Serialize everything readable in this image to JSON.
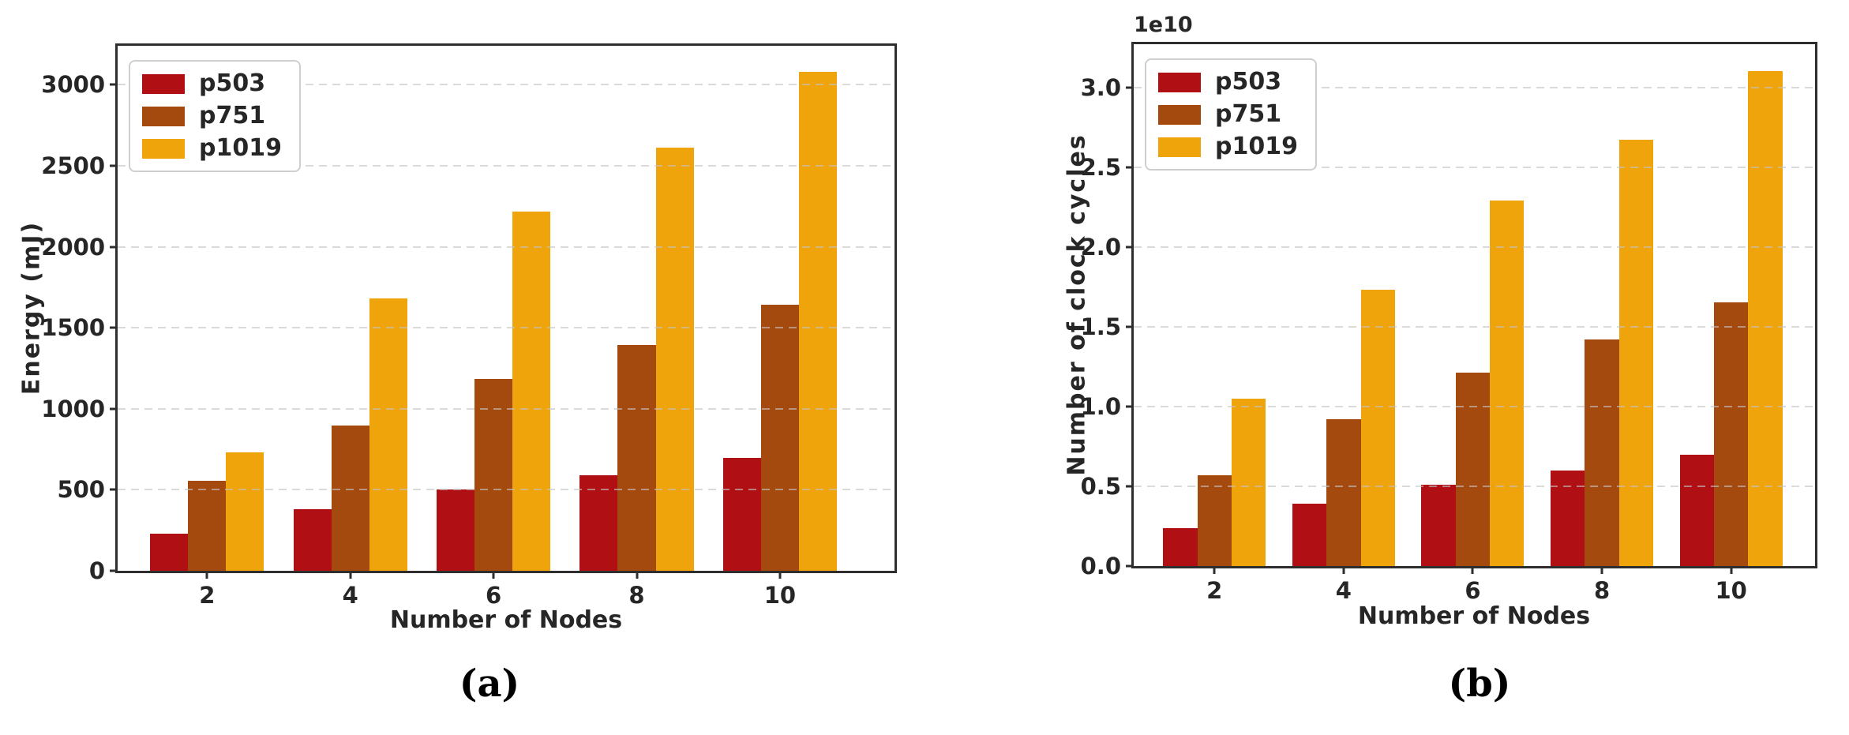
{
  "figure": {
    "background": "#ffffff",
    "captions": {
      "a": "(a)",
      "b": "(b)"
    }
  },
  "styles": {
    "spine_color": "#2e2e2e",
    "text_color": "#262626",
    "grid_color": "#c3c3c3",
    "legend_border": "#cfcfcf",
    "legend_bg": "#ffffff"
  },
  "chart_data": [
    {
      "id": "a",
      "type": "bar",
      "title": "",
      "xlabel": "Number of Nodes",
      "ylabel": "Energy (mJ)",
      "offset_label": "",
      "categories": [
        2,
        4,
        6,
        8,
        10
      ],
      "xtick_labels": [
        "2",
        "4",
        "6",
        "8",
        "10"
      ],
      "series": [
        {
          "name": "p503",
          "color": "#b01013",
          "values": [
            230,
            380,
            500,
            590,
            695
          ]
        },
        {
          "name": "p751",
          "color": "#a44a0f",
          "values": [
            555,
            895,
            1185,
            1395,
            1640
          ]
        },
        {
          "name": "p1019",
          "color": "#f0a40c",
          "values": [
            730,
            1680,
            2215,
            2610,
            3080
          ]
        }
      ],
      "yticks": [
        0,
        500,
        1000,
        1500,
        2000,
        2500,
        3000
      ],
      "ytick_labels": [
        "0",
        "500",
        "1000",
        "1500",
        "2000",
        "2500",
        "3000"
      ],
      "ylim": [
        0,
        3240
      ],
      "xlim": [
        0.75,
        11.6
      ],
      "bar_width": 0.53,
      "grid": "horizontal-dashed",
      "legend_position": "upper-left"
    },
    {
      "id": "b",
      "type": "bar",
      "title": "",
      "xlabel": "Number of Nodes",
      "ylabel": "Number of clock cycles",
      "offset_label": "1e10",
      "categories": [
        2,
        4,
        6,
        8,
        10
      ],
      "xtick_labels": [
        "2",
        "4",
        "6",
        "8",
        "10"
      ],
      "series": [
        {
          "name": "p503",
          "color": "#b01013",
          "values": [
            0.24,
            0.39,
            0.51,
            0.6,
            0.7
          ]
        },
        {
          "name": "p751",
          "color": "#a44a0f",
          "values": [
            0.57,
            0.92,
            1.21,
            1.42,
            1.65
          ]
        },
        {
          "name": "p1019",
          "color": "#f0a40c",
          "values": [
            1.05,
            1.73,
            2.29,
            2.67,
            3.1
          ]
        }
      ],
      "yticks": [
        0.0,
        0.5,
        1.0,
        1.5,
        2.0,
        2.5,
        3.0
      ],
      "ytick_labels": [
        "0.0",
        "0.5",
        "1.0",
        "1.5",
        "2.0",
        "2.5",
        "3.0"
      ],
      "ylim": [
        0,
        3.27
      ],
      "xlim": [
        0.75,
        11.3
      ],
      "bar_width": 0.53,
      "grid": "horizontal-dashed",
      "legend_position": "upper-left"
    }
  ]
}
